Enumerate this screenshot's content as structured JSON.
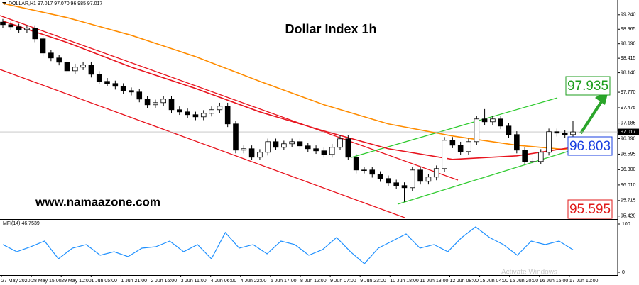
{
  "chart_data": {
    "type": "candlestick",
    "title": "Dollar Index 1h",
    "header": "DOLLAR,H1 97.017 97.070 96.985 97.017",
    "site": "www.namaazone.com",
    "watermark": "Activate Windows",
    "x_labels": [
      "27 May 2020",
      "28 May 15:00",
      "29 May 10:00",
      "1 Jun 05:00",
      "1 Jun 21:00",
      "2 Jun 16:00",
      "3 Jun 11:00",
      "4 Jun 06:00",
      "4 Jun 22:00",
      "5 Jun 17:00",
      "8 Jun 12:00",
      "9 Jun 07:00",
      "9 Jun 23:00",
      "10 Jun 18:00",
      "11 Jun 13:00",
      "12 Jun 08:00",
      "15 Jun 04:00",
      "15 Jun 20:00",
      "16 Jun 15:00",
      "17 Jun 10:00"
    ],
    "ylim": [
      95.39,
      99.52
    ],
    "yticks": [
      {
        "value": 99.24,
        "label": "99.240"
      },
      {
        "value": 98.965,
        "label": "98.965"
      },
      {
        "value": 98.69,
        "label": "98.690"
      },
      {
        "value": 98.415,
        "label": "98.415"
      },
      {
        "value": 98.14,
        "label": "98.140"
      },
      {
        "value": 97.77,
        "label": "97.770"
      },
      {
        "value": 97.475,
        "label": "97.475"
      },
      {
        "value": 97.185,
        "label": "97.185"
      },
      {
        "value": 96.89,
        "label": "96.890"
      },
      {
        "value": 96.595,
        "label": "96.595"
      },
      {
        "value": 96.3,
        "label": "96.300"
      },
      {
        "value": 96.01,
        "label": "96.010"
      },
      {
        "value": 95.715,
        "label": "95.715"
      },
      {
        "value": 95.42,
        "label": "95.420"
      }
    ],
    "up_color": "#ffffff",
    "down_color": "#000000",
    "open": [
      99.1,
      99.052,
      99.011,
      98.958,
      98.984,
      98.783,
      98.514,
      98.42,
      98.339,
      98.177,
      98.245,
      98.285,
      98.11,
      97.976,
      97.935,
      97.882,
      97.801,
      97.774,
      97.639,
      97.532,
      97.572,
      97.639,
      97.438,
      97.397,
      97.344,
      97.303,
      97.37,
      97.438,
      97.505,
      97.169,
      96.671,
      96.698,
      96.537,
      96.631,
      96.832,
      96.725,
      96.792,
      96.832,
      96.752,
      96.698,
      96.658,
      96.59,
      96.725,
      96.886,
      96.537,
      96.294,
      96.294,
      96.214,
      96.133,
      96.052,
      95.999,
      95.958,
      96.294,
      96.079,
      96.16,
      96.321,
      96.859,
      96.765,
      96.644,
      96.832,
      97.263,
      97.209,
      97.263,
      97.128,
      96.967,
      96.671,
      96.456,
      96.456,
      96.631,
      97.021,
      96.994,
      96.967
    ],
    "high": [
      99.16,
      99.11,
      99.07,
      99.04,
      99.04,
      98.84,
      98.57,
      98.48,
      98.4,
      98.31,
      98.35,
      98.35,
      98.17,
      98.04,
      97.99,
      97.94,
      97.86,
      97.83,
      97.7,
      97.63,
      97.7,
      97.7,
      97.5,
      97.46,
      97.4,
      97.43,
      97.5,
      97.57,
      97.57,
      97.23,
      96.76,
      96.76,
      96.69,
      96.89,
      96.89,
      96.85,
      96.89,
      96.89,
      96.81,
      96.76,
      96.72,
      96.79,
      96.95,
      96.95,
      96.6,
      96.35,
      96.35,
      96.27,
      96.19,
      96.11,
      96.06,
      96.35,
      96.35,
      96.22,
      96.38,
      96.92,
      96.92,
      96.83,
      96.89,
      97.32,
      97.45,
      97.32,
      97.32,
      97.19,
      97.03,
      96.73,
      96.52,
      96.69,
      97.08,
      97.08,
      97.05,
      97.22
    ],
    "low": [
      98.99,
      98.95,
      98.9,
      98.9,
      98.72,
      98.45,
      98.36,
      98.28,
      98.12,
      98.12,
      98.19,
      98.05,
      97.92,
      97.88,
      97.82,
      97.74,
      97.71,
      97.58,
      97.47,
      97.47,
      97.51,
      97.38,
      97.34,
      97.28,
      97.24,
      97.24,
      97.31,
      97.38,
      97.11,
      96.61,
      96.61,
      96.48,
      96.48,
      96.57,
      96.67,
      96.67,
      96.73,
      96.69,
      96.64,
      96.6,
      96.53,
      96.53,
      96.67,
      96.48,
      96.23,
      96.23,
      96.15,
      96.07,
      95.99,
      95.94,
      95.69,
      95.9,
      96.02,
      96.02,
      96.1,
      96.26,
      96.71,
      96.58,
      96.58,
      96.77,
      97.15,
      97.15,
      97.07,
      96.91,
      96.61,
      96.4,
      96.4,
      96.4,
      96.57,
      96.93,
      96.91,
      96.91
    ],
    "close": [
      99.052,
      99.011,
      98.958,
      98.984,
      98.783,
      98.514,
      98.42,
      98.339,
      98.177,
      98.245,
      98.285,
      98.11,
      97.976,
      97.935,
      97.882,
      97.801,
      97.774,
      97.639,
      97.532,
      97.572,
      97.639,
      97.438,
      97.397,
      97.344,
      97.303,
      97.37,
      97.438,
      97.505,
      97.169,
      96.671,
      96.698,
      96.537,
      96.631,
      96.832,
      96.725,
      96.792,
      96.832,
      96.752,
      96.698,
      96.658,
      96.59,
      96.725,
      96.886,
      96.537,
      96.294,
      96.294,
      96.214,
      96.133,
      96.052,
      95.999,
      95.958,
      96.294,
      96.079,
      96.16,
      96.321,
      96.859,
      96.765,
      96.644,
      96.832,
      97.263,
      97.209,
      97.263,
      97.128,
      96.967,
      96.671,
      96.456,
      96.456,
      96.631,
      97.021,
      96.994,
      96.967,
      97.017
    ],
    "moving_averages": [
      {
        "color": "#ff8c00",
        "x": [
          0,
          8,
          16,
          24,
          32,
          40,
          48,
          56,
          64,
          71
        ],
        "values": [
          99.455,
          99.186,
          98.85,
          98.446,
          97.976,
          97.532,
          97.169,
          96.94,
          96.765,
          96.671
        ]
      },
      {
        "color": "#e8141e",
        "x": [
          0,
          8,
          16,
          24,
          32,
          40,
          48,
          56,
          64,
          71
        ],
        "values": [
          99.119,
          98.715,
          98.245,
          97.841,
          97.397,
          97.034,
          96.698,
          96.496,
          96.563,
          96.725
        ]
      }
    ],
    "last_price": {
      "value": 97.017,
      "label": "97.017"
    },
    "annotations": [
      {
        "text": "97.935",
        "color": "#1e9e1e"
      },
      {
        "text": "96.803",
        "color": "#1a3fe0"
      },
      {
        "text": "95.595",
        "color": "#e01a1a"
      }
    ],
    "indicator": {
      "title": "MFI(14) 46.7539",
      "color": "#1e90ff",
      "ylim": [
        0,
        100
      ],
      "yticks": [
        0,
        100
      ],
      "values": [
        57.4,
        42.6,
        52.9,
        64.7,
        27.9,
        50,
        57.4,
        35.3,
        42.6,
        32.4,
        50,
        52.9,
        64.7,
        42.6,
        57.4,
        27.9,
        82.4,
        50,
        57.4,
        38.2,
        64.7,
        57.4,
        35.3,
        47.1,
        72.1,
        42.6,
        17.6,
        50,
        64.7,
        79.4,
        50,
        57.4,
        42.6,
        72.1,
        94.1,
        72.1,
        57.4,
        35.3,
        64.7,
        57.4,
        64.7,
        46.7539
      ]
    }
  }
}
